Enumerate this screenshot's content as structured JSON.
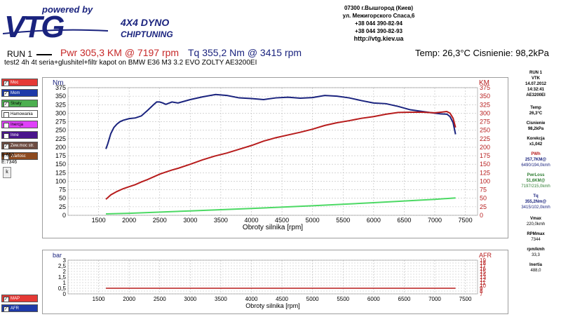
{
  "header": {
    "powered_by": "powered by",
    "logo": "VTG",
    "logo_line1": "4X4 DYNO",
    "logo_line2": "CHIPTUNING",
    "address": [
      "07300 г.Вышгород (Киев)",
      "ул. Межигорского Спаса,6",
      "+38 044 390-82-94",
      "+38 044 390-82-93",
      "http://vtg.kiev.ua"
    ]
  },
  "run": {
    "label": "RUN 1",
    "pwr": "Pwr  305,3 KM @ 7197 rpm",
    "tq": "Tq  355,2 Nm @ 3415 rpm",
    "temp": "Temp: 26,3°C   Cisnienie: 98,2kPa",
    "description": "test2 4h 4t  seria+glushitel+filtr kapot on BMW E36 M3 3.2 EVO ZOLTY AE3200EI"
  },
  "sidebar": {
    "items": [
      {
        "label": "Moc",
        "color": "#e53935",
        "checked": true
      },
      {
        "label": "Mom",
        "color": "#1e3aa8",
        "checked": true
      },
      {
        "label": "Straty",
        "color": "#4caf50",
        "checked": true
      },
      {
        "label": "Hamowania",
        "color": "#ffffff",
        "checked": false
      },
      {
        "label": "Inercja",
        "color": "#e040fb",
        "checked": false
      },
      {
        "label": "Inne",
        "color": "#4a148c",
        "checked": false
      },
      {
        "label": "Zew.moc str.",
        "color": "#6d4c41",
        "checked": true
      },
      {
        "label": "Wartosc",
        "color": "#8d4a1f",
        "checked": false
      }
    ],
    "b_value": "B:650",
    "e_value": "E:7346",
    "k_button": "k",
    "bottom_items": [
      {
        "label": "MAP",
        "color": "#e53935",
        "checked": true
      },
      {
        "label": "AFR",
        "color": "#1e3aa8",
        "checked": true
      }
    ]
  },
  "right_panel": {
    "run": "RUN 1",
    "vtk": "VTK",
    "date": "14.07.2012",
    "time": "14:32:41",
    "id": "AE3200EI",
    "temp_label": "Temp",
    "temp_value": "26,3°C",
    "press_label": "Cisnienie",
    "press_value": "98,2kPa",
    "korekcja_label": "Korekcja",
    "korekcja_value": "x1,042",
    "pwh_label": "PWh",
    "pwh_value": "257,7KM@",
    "pwh_sub": "6490/194,0kmh",
    "pwrloss_label": "PwrLoss",
    "pwrloss_value": "51,6KM@",
    "pwrloss_sub": "7197/215,0kmh",
    "tq_label": "Tq",
    "tq_value": "355,2Nm@",
    "tq_sub": "3415/102,0kmh",
    "vmax_label": "Vmax",
    "vmax_value": "220,0kmh",
    "rpmmax_label": "RPMmax",
    "rpmmax_value": "7344",
    "rpmkmh_label": "rpm/kmh",
    "rpmkmh_value": "33,3",
    "inertia_label": "Inertia",
    "inertia_value": "488,0"
  },
  "colors": {
    "power": "#b71c1c",
    "torque": "#1a237e",
    "loss": "#4cd964",
    "grid": "#bdbdbd"
  },
  "chart_data": [
    {
      "type": "line",
      "xlabel": "Obroty silnika [rpm]",
      "ylabel_left": "Nm",
      "ylabel_right": "KM",
      "xlim": [
        1000,
        7700
      ],
      "ylim": [
        0,
        375
      ],
      "xticks": [
        1500,
        2000,
        2500,
        3000,
        3500,
        4000,
        4500,
        5000,
        5500,
        6000,
        6500,
        7000,
        7500
      ],
      "yticks": [
        0,
        25,
        50,
        75,
        100,
        125,
        150,
        175,
        200,
        225,
        250,
        275,
        300,
        325,
        350,
        375
      ],
      "grid": true,
      "series": [
        {
          "key": "torque",
          "x": [
            1620,
            1650,
            1700,
            1750,
            1800,
            1850,
            1900,
            2000,
            2100,
            2200,
            2300,
            2400,
            2450,
            2500,
            2550,
            2600,
            2700,
            2800,
            3000,
            3200,
            3415,
            3600,
            3800,
            4000,
            4200,
            4400,
            4600,
            4800,
            5000,
            5200,
            5400,
            5600,
            5800,
            6000,
            6200,
            6400,
            6600,
            6800,
            7000,
            7100,
            7200,
            7250,
            7300,
            7340
          ],
          "y": [
            195,
            210,
            240,
            258,
            268,
            275,
            279,
            284,
            286,
            292,
            308,
            325,
            333,
            333,
            330,
            326,
            333,
            330,
            340,
            348,
            355,
            352,
            345,
            343,
            340,
            345,
            347,
            344,
            346,
            352,
            350,
            345,
            337,
            330,
            328,
            320,
            310,
            305,
            300,
            298,
            297,
            290,
            272,
            238
          ]
        },
        {
          "key": "power",
          "x": [
            1620,
            1700,
            1800,
            1900,
            2000,
            2100,
            2200,
            2300,
            2400,
            2500,
            2600,
            2700,
            2800,
            3000,
            3200,
            3400,
            3600,
            3800,
            4000,
            4200,
            4400,
            4600,
            4800,
            5000,
            5200,
            5400,
            5600,
            5800,
            6000,
            6200,
            6400,
            6600,
            6800,
            7000,
            7100,
            7197,
            7250,
            7300,
            7340
          ],
          "y": [
            47,
            60,
            70,
            78,
            84,
            90,
            98,
            105,
            113,
            121,
            127,
            133,
            138,
            150,
            163,
            174,
            183,
            194,
            205,
            218,
            228,
            236,
            244,
            253,
            264,
            272,
            278,
            285,
            290,
            297,
            302,
            303,
            303,
            301,
            303,
            305,
            300,
            285,
            258
          ]
        },
        {
          "key": "loss",
          "x": [
            1620,
            2000,
            3000,
            4000,
            5000,
            6000,
            7000,
            7340
          ],
          "y": [
            4,
            6,
            13,
            20,
            28,
            37,
            47,
            51
          ]
        }
      ]
    },
    {
      "type": "line",
      "xlabel": "Obroty silnika [rpm]",
      "ylabel_left": "bar",
      "ylabel_right": "AFR",
      "xlim": [
        1000,
        7700
      ],
      "ylim": [
        0,
        3
      ],
      "xticks": [
        1500,
        2000,
        2500,
        3000,
        3500,
        4000,
        4500,
        5000,
        5500,
        6000,
        6500,
        7000,
        7500
      ],
      "yticks": [
        0,
        0.25,
        0.5,
        0.75,
        1,
        1.25,
        1.5,
        1.75,
        2,
        2.25,
        2.5,
        2.75,
        3
      ],
      "ytick_labels": [
        "0",
        "",
        "0,5",
        "",
        "1",
        "",
        "1,5",
        "",
        "2",
        "",
        "2,5",
        "",
        "3"
      ],
      "yticks_right_labels": [
        "7",
        "8",
        "9",
        "10",
        "11",
        "12",
        "13",
        "14",
        "15",
        "16",
        "17",
        "18",
        "19"
      ],
      "grid": true,
      "series": [
        {
          "key": "power",
          "x": [
            1620,
            7340
          ],
          "y": [
            0.5,
            0.5
          ]
        }
      ]
    }
  ]
}
